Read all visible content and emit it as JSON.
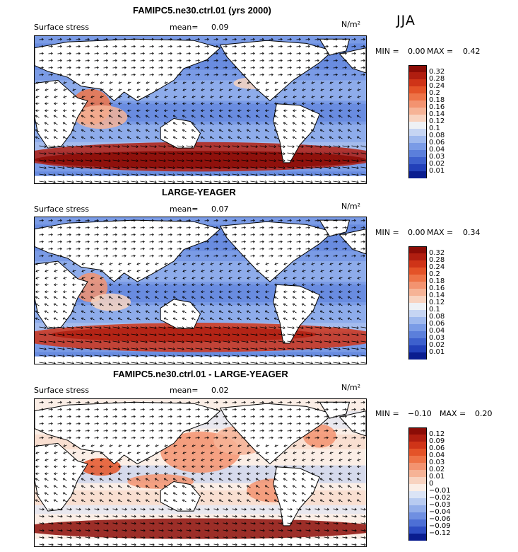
{
  "season": "JJA",
  "colors": {
    "land": "#ffffff",
    "coast": "#000000",
    "arrow": "#000000",
    "scale_positive": [
      "#f6d3bf",
      "#f5b699",
      "#f19a73",
      "#ec7c50",
      "#e65f33",
      "#dc4521",
      "#ce3017",
      "#b71f10",
      "#951006"
    ],
    "scale_negative": [
      "#d6e1f7",
      "#b3c9f2",
      "#92b0ec",
      "#7398e5",
      "#5781dc",
      "#3d69d2",
      "#2a53c5",
      "#1b3cb4",
      "#0b1e90"
    ]
  },
  "panels": [
    {
      "title": "FAMIPC5.ne30.ctrl.01 (yrs 2000)",
      "variable": "Surface stress",
      "mean_label": "mean=",
      "mean_value": "0.09",
      "units": "N/m²",
      "min_label": "MIN =",
      "min_value": "0.00",
      "max_label": "MAX =",
      "max_value": "0.42",
      "colorbar_levels": [
        "0.32",
        "0.28",
        "0.24",
        "0.2",
        "0.18",
        "0.16",
        "0.14",
        "0.12",
        "0.1",
        "0.08",
        "0.06",
        "0.04",
        "0.03",
        "0.02",
        "0.01"
      ],
      "colorbar_colors": [
        "#8b0c06",
        "#b01e10",
        "#cf3418",
        "#e45328",
        "#ee7347",
        "#f39370",
        "#f6b396",
        "#f8d3c0",
        "#eef1f5",
        "#c6d5f3",
        "#9fb9ee",
        "#7a9be6",
        "#5b7fdb",
        "#3d60cd",
        "#2240b9",
        "#0a1d8f"
      ],
      "chart_data": {
        "type": "heatmap",
        "title": "FAMIPC5.ne30.ctrl.01 (yrs 2000)",
        "variable": "Surface stress",
        "units": "N/m²",
        "season": "JJA",
        "mean": 0.09,
        "min": 0.0,
        "max": 0.42,
        "levels": [
          0.01,
          0.02,
          0.03,
          0.04,
          0.06,
          0.08,
          0.1,
          0.12,
          0.14,
          0.16,
          0.18,
          0.2,
          0.24,
          0.28,
          0.32
        ],
        "overlay": "wind stress vectors",
        "grid": false
      }
    },
    {
      "title": "LARGE-YEAGER",
      "variable": "Surface stress",
      "mean_label": "mean=",
      "mean_value": "0.07",
      "units": "N/m²",
      "min_label": "MIN =",
      "min_value": "0.00",
      "max_label": "MAX =",
      "max_value": "0.34",
      "colorbar_levels": [
        "0.32",
        "0.28",
        "0.24",
        "0.2",
        "0.18",
        "0.16",
        "0.14",
        "0.12",
        "0.1",
        "0.08",
        "0.06",
        "0.04",
        "0.03",
        "0.02",
        "0.01"
      ],
      "colorbar_colors": [
        "#8b0c06",
        "#b01e10",
        "#cf3418",
        "#e45328",
        "#ee7347",
        "#f39370",
        "#f6b396",
        "#f8d3c0",
        "#eef1f5",
        "#c6d5f3",
        "#9fb9ee",
        "#7a9be6",
        "#5b7fdb",
        "#3d60cd",
        "#2240b9",
        "#0a1d8f"
      ],
      "chart_data": {
        "type": "heatmap",
        "title": "LARGE-YEAGER",
        "variable": "Surface stress",
        "units": "N/m²",
        "season": "JJA",
        "mean": 0.07,
        "min": 0.0,
        "max": 0.34,
        "levels": [
          0.01,
          0.02,
          0.03,
          0.04,
          0.06,
          0.08,
          0.1,
          0.12,
          0.14,
          0.16,
          0.18,
          0.2,
          0.24,
          0.28,
          0.32
        ],
        "overlay": "wind stress vectors",
        "grid": false
      }
    },
    {
      "title": "FAMIPC5.ne30.ctrl.01 - LARGE-YEAGER",
      "variable": "Surface stress",
      "mean_label": "mean=",
      "mean_value": "0.02",
      "units": "N/m²",
      "min_label": "MIN =",
      "min_value": "−0.10",
      "max_label": "MAX =",
      "max_value": "0.20",
      "colorbar_levels": [
        "0.12",
        "0.09",
        "0.06",
        "0.04",
        "0.03",
        "0.02",
        "0.01",
        "0",
        "−0.01",
        "−0.02",
        "−0.03",
        "−0.04",
        "−0.06",
        "−0.09",
        "−0.12"
      ],
      "colorbar_colors": [
        "#8b0c06",
        "#b01e10",
        "#cf3418",
        "#e45328",
        "#ee7347",
        "#f39370",
        "#f6b396",
        "#f8d3c0",
        "#fbeee6",
        "#dbe4f6",
        "#b8cbf1",
        "#93aeea",
        "#6f8fe1",
        "#4d6fd5",
        "#2d4cc2",
        "#0a1d8f"
      ],
      "chart_data": {
        "type": "heatmap",
        "title": "FAMIPC5.ne30.ctrl.01 - LARGE-YEAGER",
        "variable": "Surface stress",
        "units": "N/m²",
        "season": "JJA",
        "mean": 0.02,
        "min": -0.1,
        "max": 0.2,
        "levels": [
          -0.12,
          -0.09,
          -0.06,
          -0.04,
          -0.03,
          -0.02,
          -0.01,
          0,
          0.01,
          0.02,
          0.03,
          0.04,
          0.06,
          0.09,
          0.12
        ],
        "overlay": "wind stress difference vectors",
        "grid": false
      }
    }
  ]
}
